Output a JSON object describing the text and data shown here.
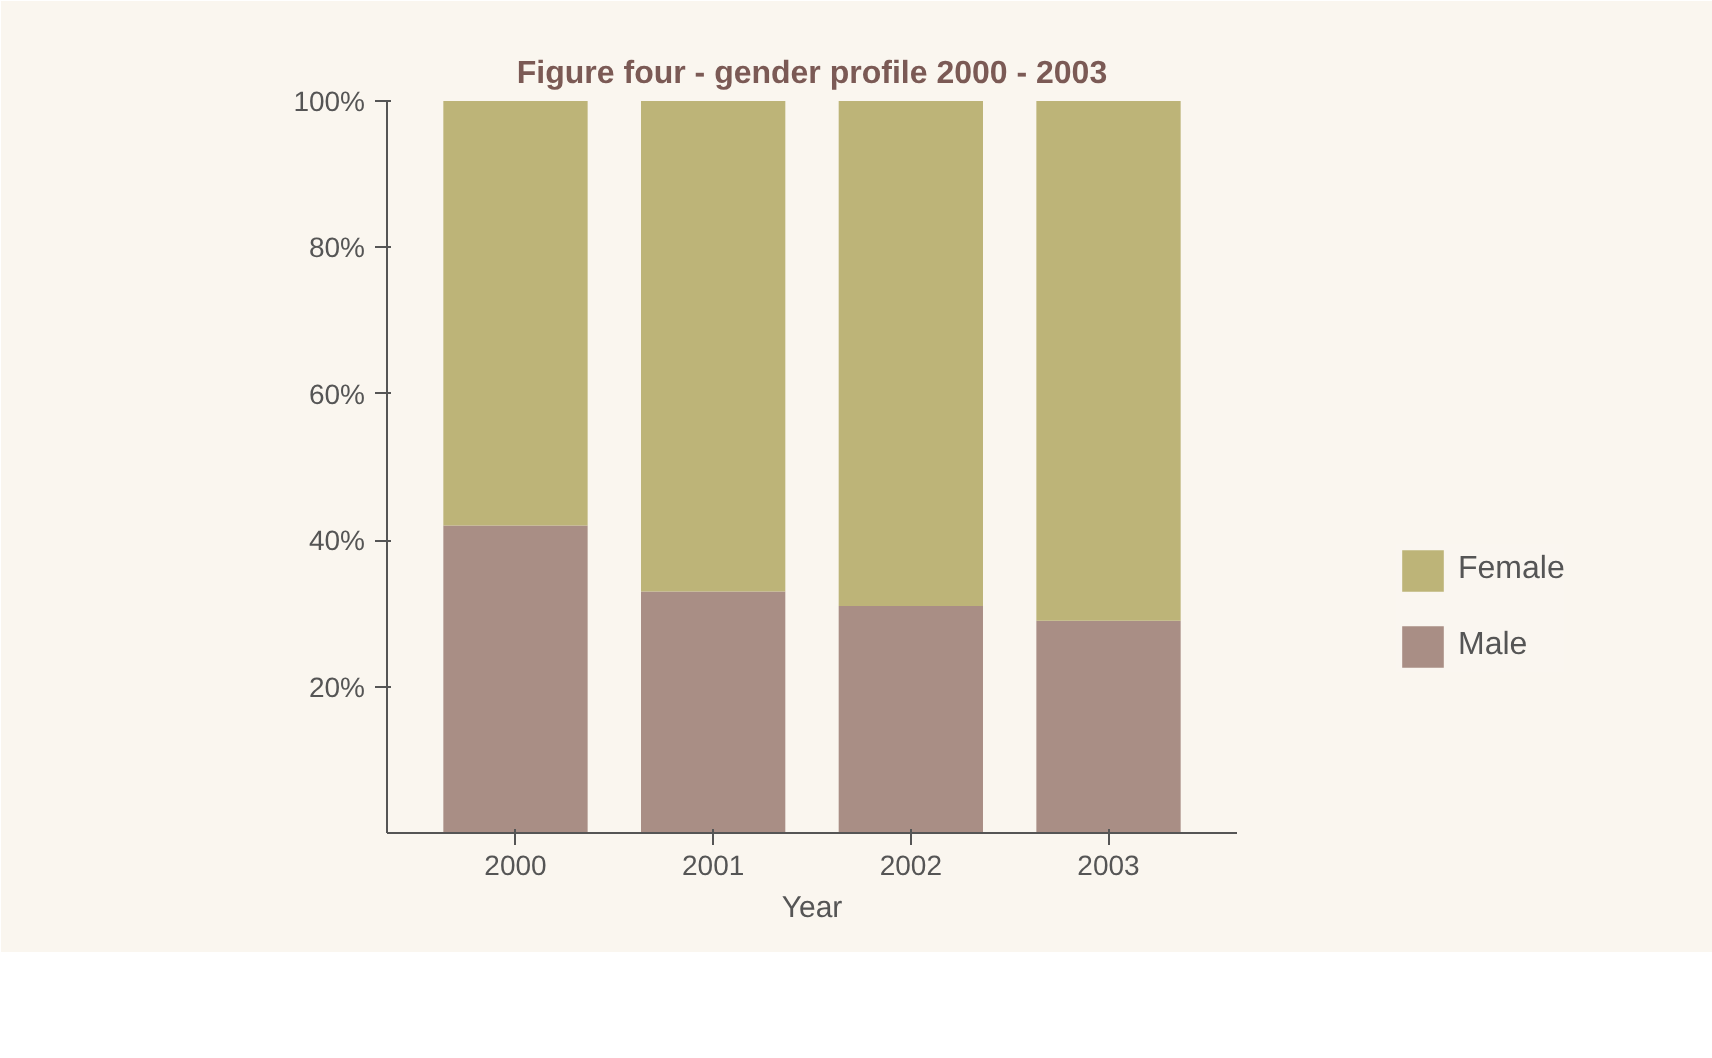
{
  "chart_data": {
    "type": "bar",
    "title": "Figure four - gender profile 2000 - 2003",
    "xlabel": "Year",
    "categories": [
      "2000",
      "2001",
      "2002",
      "2003"
    ],
    "stacked": true,
    "series": [
      {
        "name": "Male",
        "color": "#a98e85",
        "values": [
          42,
          33,
          31,
          29
        ]
      },
      {
        "name": "Female",
        "color": "#bdb478",
        "values": [
          58,
          67,
          69,
          71
        ]
      }
    ],
    "ylim": [
      0,
      100
    ],
    "yticks": [
      {
        "value": 20,
        "label": "20%"
      },
      {
        "value": 40,
        "label": "40%"
      },
      {
        "value": 60,
        "label": "60%"
      },
      {
        "value": 80,
        "label": "80%"
      },
      {
        "value": 100,
        "label": "100%"
      }
    ],
    "grid": false,
    "legend": "right"
  }
}
